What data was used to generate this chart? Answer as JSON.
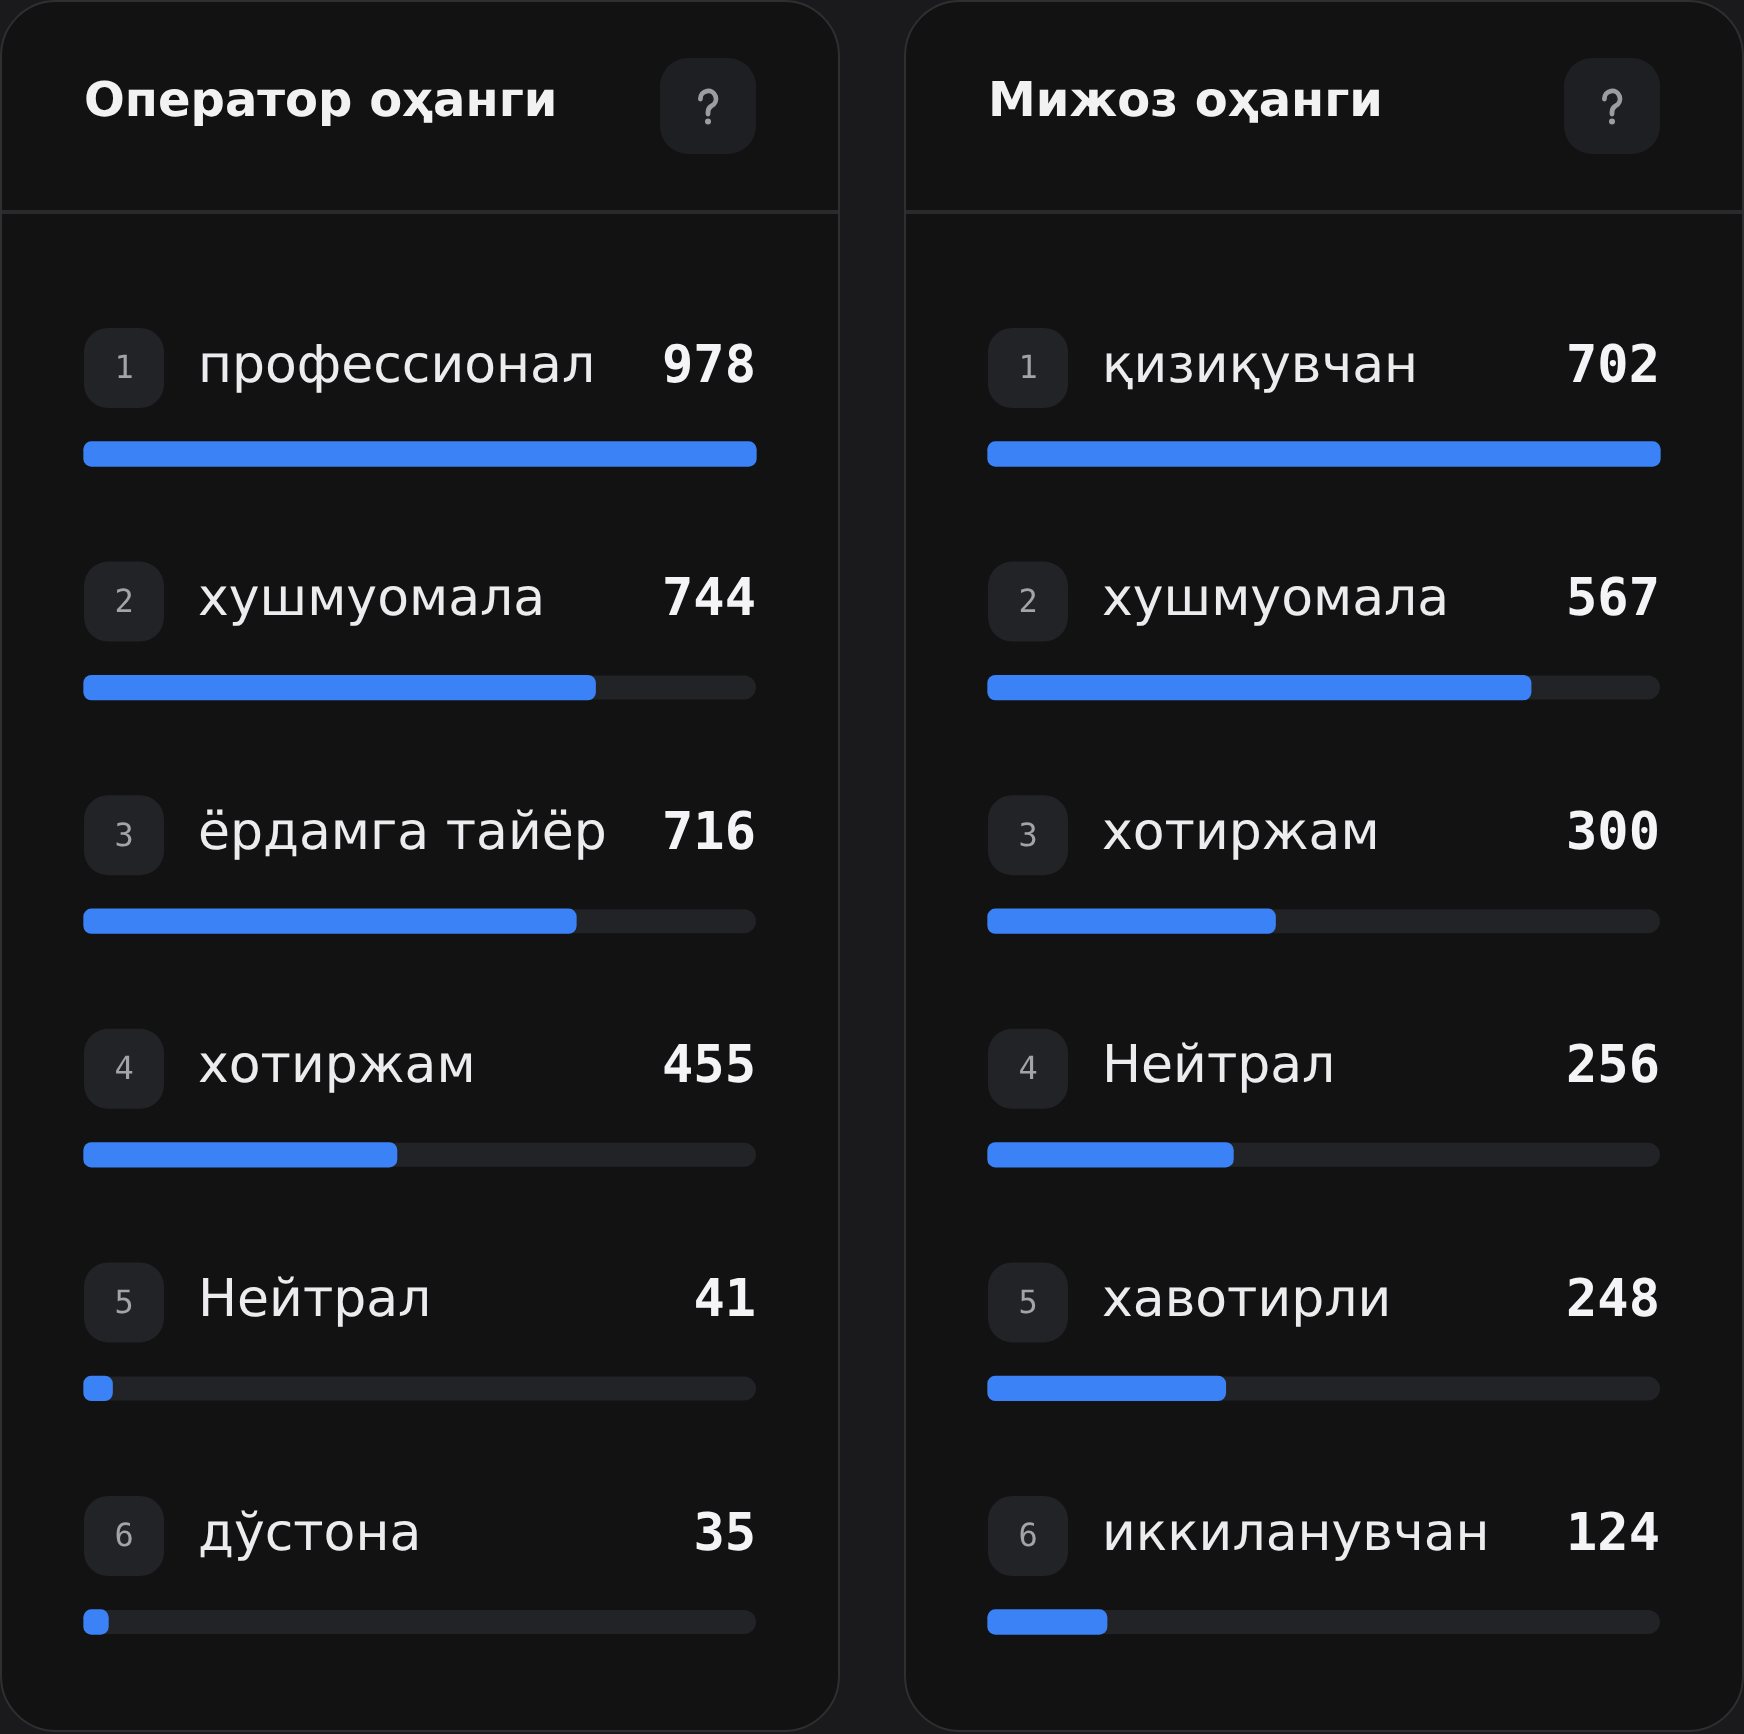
{
  "chart_data": [
    {
      "type": "bar",
      "orientation": "horizontal",
      "title": "Оператор оҳанги",
      "categories": [
        "профессионал",
        "хушмуомала",
        "ёрдамга тайёр",
        "хотиржам",
        "Нейтрал",
        "дўстона"
      ],
      "values": [
        978,
        744,
        716,
        455,
        41,
        35
      ],
      "color": "#3b82f6",
      "xlim": [
        0,
        978
      ],
      "data_labels": true,
      "tick_labels": "y",
      "annotations": [
        {
          "text": "1",
          "y": "профессионал"
        },
        {
          "text": "2",
          "y": "хушмуомала"
        },
        {
          "text": "3",
          "y": "ёрдамга тайёр"
        },
        {
          "text": "4",
          "y": "хотиржам"
        },
        {
          "text": "5",
          "y": "Нейтрал"
        },
        {
          "text": "6",
          "y": "дўстона"
        }
      ]
    },
    {
      "type": "bar",
      "orientation": "horizontal",
      "title": "Мижоз оҳанги",
      "categories": [
        "қизиқувчан",
        "хушмуомала",
        "хотиржам",
        "Нейтрал",
        "хавотирли",
        "иккиланувчан"
      ],
      "values": [
        702,
        567,
        300,
        256,
        248,
        124
      ],
      "color": "#3b82f6",
      "xlim": [
        0,
        702
      ],
      "data_labels": true,
      "tick_labels": "y",
      "annotations": [
        {
          "text": "1",
          "y": "қизиқувчан"
        },
        {
          "text": "2",
          "y": "хушмуомала"
        },
        {
          "text": "3",
          "y": "хотиржам"
        },
        {
          "text": "4",
          "y": "Нейтрал"
        },
        {
          "text": "5",
          "y": "хавотирли"
        },
        {
          "text": "6",
          "y": "иккиланувчан"
        }
      ]
    }
  ]
}
